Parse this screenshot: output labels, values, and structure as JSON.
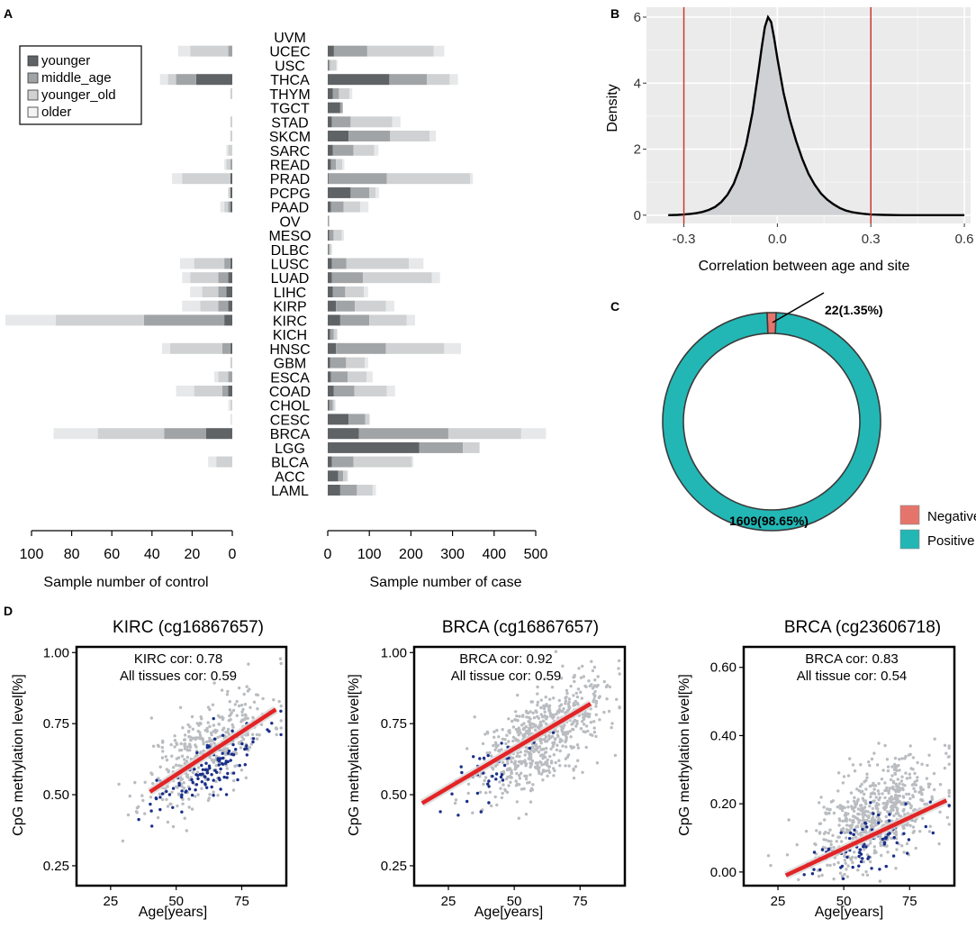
{
  "panel_labels": {
    "a": "A",
    "b": "B",
    "c": "C",
    "d": "D"
  },
  "colors": {
    "younger": "#5f6366",
    "middle_age": "#a1a4a6",
    "younger_old": "#cfd1d2",
    "older": "#e7e8e9",
    "negative": "#e5756c",
    "positive": "#22b7b5",
    "density_fill": "#cfd1d4",
    "ref_line": "#c8392b",
    "fit_line": "#e32426",
    "scatter_gray": "#b9bcc0",
    "scatter_blue": "#1a2f8a"
  },
  "chart_data": [
    {
      "id": "A",
      "type": "bar",
      "orientation": "horizontal",
      "stacked": true,
      "legend": [
        "younger",
        "middle_age",
        "younger_old",
        "older"
      ],
      "categories": [
        "UVM",
        "UCEC",
        "USC",
        "THCA",
        "THYM",
        "TGCT",
        "STAD",
        "SKCM",
        "SARC",
        "READ",
        "PRAD",
        "PCPG",
        "PAAD",
        "OV",
        "MESO",
        "DLBC",
        "LUSC",
        "LUAD",
        "LIHC",
        "KIRP",
        "KIRC",
        "KICH",
        "HNSC",
        "GBM",
        "ESCA",
        "COAD",
        "CHOL",
        "CESC",
        "BRCA",
        "LGG",
        "BLCA",
        "ACC",
        "LAML"
      ],
      "control": {
        "xlabel": "Sample number of control",
        "xlim": [
          100,
          0
        ],
        "ticks": [
          100,
          80,
          60,
          40,
          20,
          0
        ],
        "series": [
          {
            "name": "younger",
            "values": [
              0,
              0,
              0,
              18,
              0,
              0,
              0,
              0,
              0,
              0,
              1,
              1,
              1,
              0,
              0,
              0,
              1,
              2,
              3,
              2,
              4,
              0,
              1,
              0,
              0,
              2,
              0,
              0,
              13,
              0,
              0,
              0,
              0
            ]
          },
          {
            "name": "middle_age",
            "values": [
              0,
              2,
              0,
              10,
              0,
              0,
              0,
              0,
              0,
              1,
              0,
              0,
              1,
              0,
              0,
              0,
              3,
              5,
              4,
              5,
              40,
              0,
              4,
              0,
              2,
              3,
              0,
              0,
              21,
              0,
              0,
              0,
              0
            ]
          },
          {
            "name": "younger_old",
            "values": [
              0,
              19,
              0,
              4,
              1,
              0,
              1,
              1,
              2,
              2,
              24,
              1,
              2,
              0,
              0,
              0,
              15,
              14,
              8,
              9,
              44,
              0,
              26,
              1,
              5,
              14,
              1,
              0,
              33,
              0,
              8,
              0,
              0
            ]
          },
          {
            "name": "older",
            "values": [
              0,
              6,
              0,
              4,
              0,
              0,
              0,
              0,
              1,
              1,
              5,
              0,
              2,
              0,
              0,
              0,
              7,
              4,
              6,
              9,
              25,
              0,
              4,
              0,
              2,
              9,
              1,
              1,
              22,
              0,
              4,
              0,
              0
            ]
          }
        ]
      },
      "case": {
        "xlabel": "Sample number of case",
        "xlim": [
          0,
          500
        ],
        "ticks": [
          0,
          100,
          200,
          300,
          400,
          500
        ],
        "series": [
          {
            "name": "younger",
            "values": [
              0,
              15,
              2,
              148,
              12,
              30,
              10,
              50,
              12,
              8,
              2,
              55,
              8,
              0,
              4,
              1,
              10,
              10,
              12,
              20,
              30,
              6,
              20,
              6,
              8,
              14,
              4,
              50,
              75,
              220,
              10,
              25,
              30
            ]
          },
          {
            "name": "middle_age",
            "values": [
              0,
              80,
              4,
              90,
              15,
              6,
              45,
              100,
              50,
              12,
              140,
              45,
              30,
              3,
              10,
              4,
              35,
              75,
              30,
              45,
              70,
              8,
              120,
              38,
              40,
              50,
              8,
              40,
              215,
              105,
              52,
              12,
              40
            ]
          },
          {
            "name": "younger_old",
            "values": [
              0,
              160,
              15,
              55,
              25,
              0,
              100,
              95,
              50,
              15,
              200,
              15,
              40,
              1,
              20,
              4,
              150,
              165,
              45,
              75,
              90,
              8,
              140,
              45,
              45,
              78,
              5,
              10,
              175,
              40,
              140,
              10,
              38
            ]
          },
          {
            "name": "older",
            "values": [
              0,
              25,
              2,
              20,
              7,
              0,
              20,
              15,
              10,
              5,
              7,
              8,
              20,
              0,
              5,
              2,
              35,
              20,
              10,
              20,
              20,
              2,
              40,
              8,
              15,
              20,
              2,
              2,
              60,
              0,
              4,
              2,
              8
            ]
          }
        ]
      }
    },
    {
      "id": "B",
      "type": "area",
      "xlabel": "Correlation between age and site",
      "ylabel": "Density",
      "xlim": [
        -0.42,
        0.62
      ],
      "ylim": [
        -0.25,
        6.3
      ],
      "xticks": [
        -0.3,
        0.0,
        0.3,
        0.6
      ],
      "xtick_labels": [
        "-0.3",
        "0.0",
        "0.3",
        "0.6"
      ],
      "yticks": [
        0,
        2,
        4,
        6
      ],
      "vlines": [
        -0.3,
        0.3
      ],
      "x": [
        -0.35,
        -0.32,
        -0.3,
        -0.28,
        -0.26,
        -0.24,
        -0.22,
        -0.2,
        -0.18,
        -0.16,
        -0.14,
        -0.12,
        -0.1,
        -0.08,
        -0.06,
        -0.05,
        -0.04,
        -0.03,
        -0.02,
        -0.01,
        0.0,
        0.02,
        0.04,
        0.06,
        0.08,
        0.1,
        0.12,
        0.14,
        0.16,
        0.18,
        0.2,
        0.22,
        0.24,
        0.26,
        0.28,
        0.3,
        0.34,
        0.4,
        0.5,
        0.6
      ],
      "y": [
        0.0,
        0.01,
        0.02,
        0.04,
        0.06,
        0.1,
        0.16,
        0.25,
        0.4,
        0.62,
        0.95,
        1.45,
        2.15,
        3.1,
        4.4,
        5.1,
        5.7,
        6.0,
        5.85,
        5.35,
        4.75,
        3.7,
        2.9,
        2.25,
        1.7,
        1.25,
        0.92,
        0.66,
        0.47,
        0.33,
        0.22,
        0.14,
        0.09,
        0.06,
        0.04,
        0.02,
        0.01,
        0.0,
        0.0,
        0.0
      ]
    },
    {
      "id": "C",
      "type": "pie",
      "donut": true,
      "labels": [
        "Negative",
        "Positive"
      ],
      "values": [
        22,
        1609
      ],
      "percents": [
        "1.35%",
        "98.65%"
      ],
      "data_labels": [
        "22(1.35%)",
        "1609(98.65%)"
      ],
      "legend": [
        "Negative",
        "Positive"
      ]
    },
    {
      "id": "D1",
      "type": "scatter",
      "title": "KIRC (cg16867657)",
      "xlabel": "Age[years]",
      "ylabel": "CpG methylation level[%]",
      "xlim": [
        12,
        92
      ],
      "ylim": [
        0.18,
        1.02
      ],
      "xticks": [
        25,
        50,
        75
      ],
      "yticks": [
        0.25,
        0.5,
        0.75,
        1.0
      ],
      "ytick_labels": [
        "0.25",
        "0.50",
        "0.75",
        "1.00"
      ],
      "annotations": [
        "KIRC cor: 0.78",
        "All tissues cor: 0.59"
      ],
      "fit": {
        "x": [
          40,
          88
        ],
        "y": [
          0.51,
          0.8
        ]
      },
      "gray_count": 420,
      "gray_center": [
        62,
        0.66
      ],
      "gray_sd": [
        12,
        0.08
      ],
      "blue_count": 130,
      "blue_center": [
        62,
        0.6
      ],
      "blue_sd": [
        10,
        0.05
      ],
      "seed": 11
    },
    {
      "id": "D2",
      "type": "scatter",
      "title": "BRCA (cg16867657)",
      "xlabel": "Age[years]",
      "ylabel": "CpG methylation level[%]",
      "xlim": [
        12,
        92
      ],
      "ylim": [
        0.18,
        1.02
      ],
      "xticks": [
        25,
        50,
        75
      ],
      "yticks": [
        0.25,
        0.5,
        0.75,
        1.0
      ],
      "ytick_labels": [
        "0.25",
        "0.50",
        "0.75",
        "1.00"
      ],
      "annotations": [
        "BRCA cor: 0.92",
        "All tissue cor: 0.59"
      ],
      "fit": {
        "x": [
          15,
          79
        ],
        "y": [
          0.47,
          0.82
        ]
      },
      "gray_count": 650,
      "gray_center": [
        60,
        0.7
      ],
      "gray_sd": [
        12,
        0.08
      ],
      "blue_count": 40,
      "blue_center": [
        42,
        0.6
      ],
      "blue_sd": [
        9,
        0.05
      ],
      "seed": 29
    },
    {
      "id": "D3",
      "type": "scatter",
      "title": "BRCA (cg23606718)",
      "xlabel": "Age[years]",
      "ylabel": "CpG methylation level[%]",
      "xlim": [
        12,
        92
      ],
      "ylim": [
        -0.04,
        0.66
      ],
      "xticks": [
        25,
        50,
        75
      ],
      "yticks": [
        0.0,
        0.2,
        0.4,
        0.6
      ],
      "ytick_labels": [
        "0.00",
        "0.20",
        "0.40",
        "0.60"
      ],
      "annotations": [
        "BRCA cor: 0.83",
        "All tissue cor: 0.54"
      ],
      "fit": {
        "x": [
          28,
          89
        ],
        "y": [
          -0.01,
          0.21
        ]
      },
      "gray_count": 650,
      "gray_center": [
        62,
        0.16
      ],
      "gray_sd": [
        12,
        0.07
      ],
      "blue_count": 90,
      "blue_center": [
        57,
        0.08
      ],
      "blue_sd": [
        12,
        0.04
      ],
      "seed": 47
    }
  ]
}
